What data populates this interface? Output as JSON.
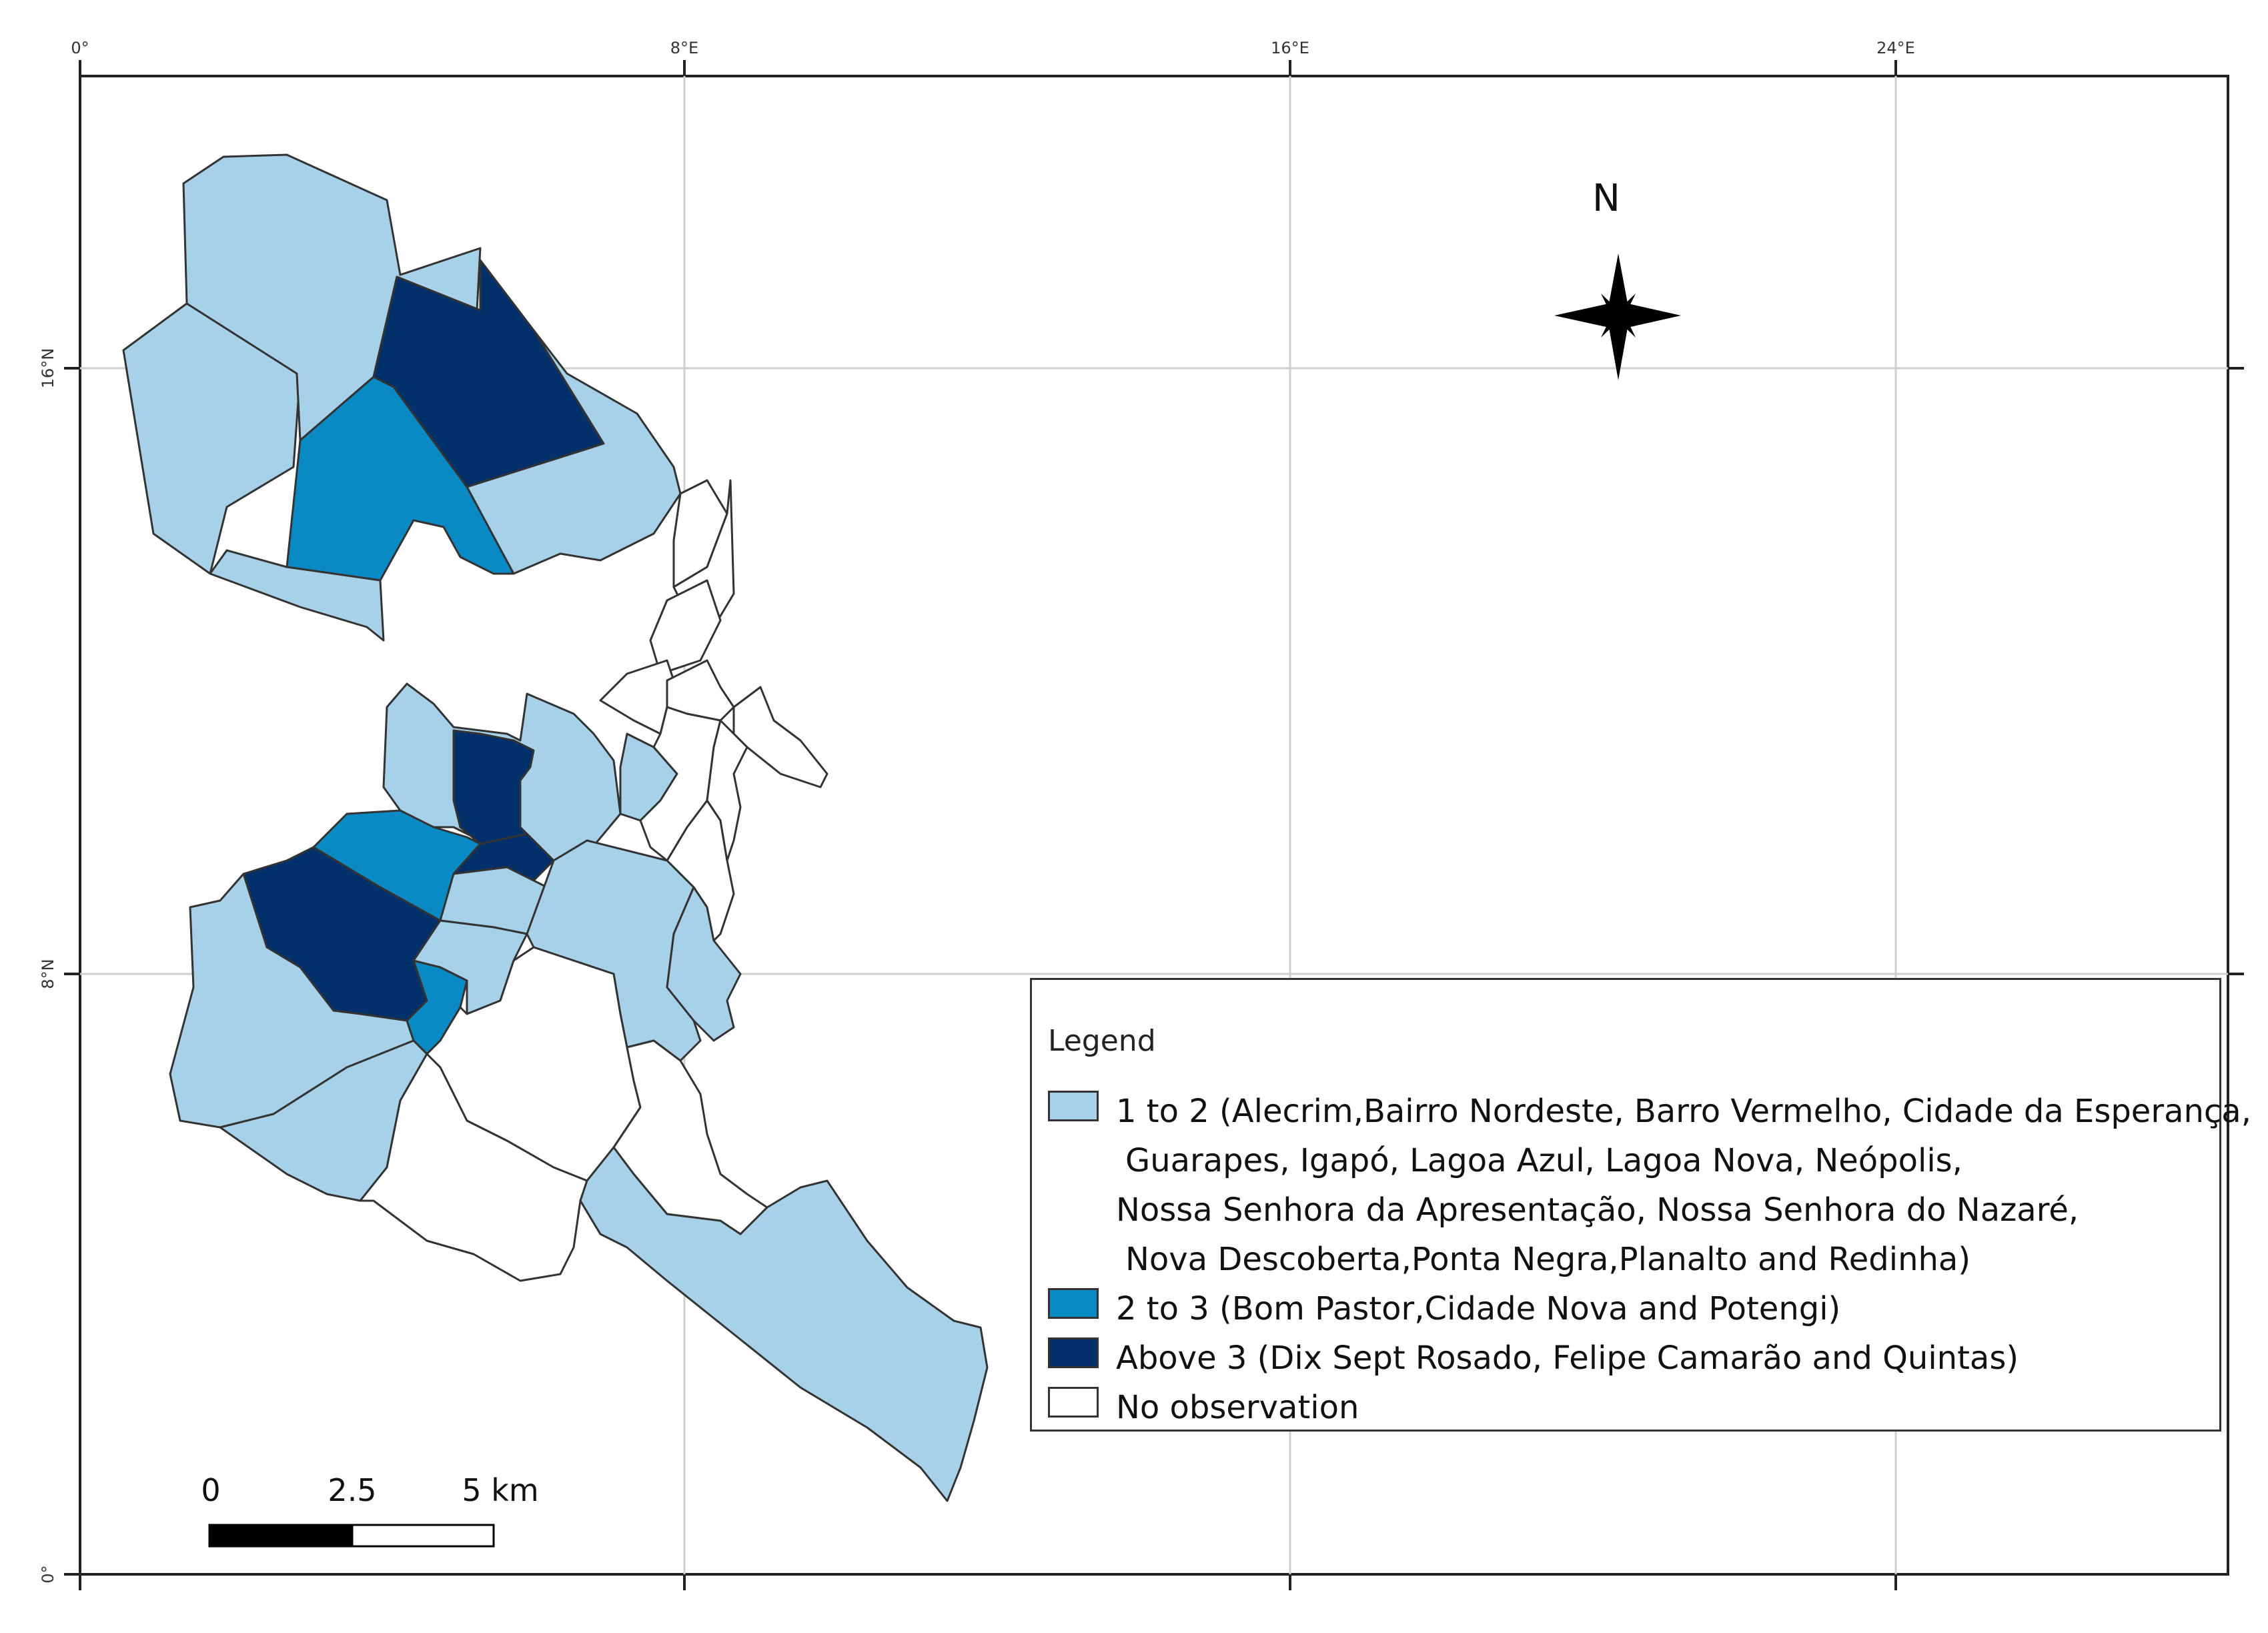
{
  "map": {
    "graticule": {
      "top_labels": [
        "0°",
        "8°E",
        "16°E",
        "24°E"
      ],
      "left_labels": [
        "16°N",
        "8°N",
        "0°"
      ]
    },
    "north_arrow": {
      "label": "N"
    },
    "scale_bar": {
      "labels": [
        "0",
        "2.5",
        "5 km"
      ]
    },
    "legend": {
      "title": "Legend",
      "entries": [
        {
          "color": "#a6d1e9",
          "lines": [
            "1 to 2 (Alecrim,Bairro Nordeste, Barro Vermelho, Cidade da Esperança,",
            "Guarapes, Igapó, Lagoa Azul, Lagoa Nova, Neópolis,",
            "Nossa Senhora da Apresentação, Nossa Senhora do Nazaré,",
            "Nova Descoberta,Ponta Negra,Planalto and Redinha)"
          ]
        },
        {
          "color": "#0a8ac4",
          "lines": [
            "2 to 3 (Bom Pastor,Cidade Nova and Potengi)"
          ]
        },
        {
          "color": "#02306a",
          "lines": [
            "Above 3 (Dix Sept Rosado, Felipe Camarão and Quintas)"
          ]
        },
        {
          "color": "#ffffff",
          "lines": [
            "No observation"
          ]
        }
      ]
    },
    "colors": {
      "class_1_2": "#a6d1e9",
      "class_2_3": "#0a8ac4",
      "class_above_3": "#02306a",
      "no_obs": "#ffffff",
      "border": "#333333"
    }
  }
}
